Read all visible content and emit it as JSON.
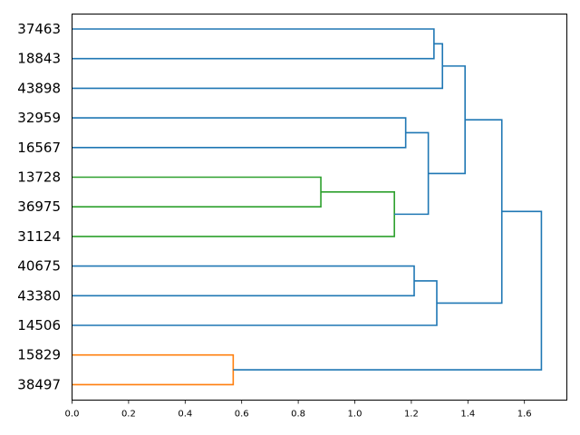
{
  "chart_data": {
    "type": "dendrogram",
    "orientation": "left",
    "xlim": [
      0,
      1.75
    ],
    "x_ticks": [
      0.0,
      0.2,
      0.4,
      0.6,
      0.8,
      1.0,
      1.2,
      1.4,
      1.6
    ],
    "x_tick_labels": [
      "0.0",
      "0.2",
      "0.4",
      "0.6",
      "0.8",
      "1.0",
      "1.2",
      "1.4",
      "1.6"
    ],
    "leaves": [
      "37463",
      "18843",
      "43898",
      "32959",
      "16567",
      "13728",
      "36975",
      "31124",
      "40675",
      "43380",
      "14506",
      "15829",
      "38497"
    ],
    "merges": [
      {
        "left": "leaf:0",
        "right": "leaf:1",
        "height": 1.28,
        "color": "#1f77b4"
      },
      {
        "left": "m:0",
        "right": "leaf:2",
        "height": 1.31,
        "color": "#1f77b4"
      },
      {
        "left": "leaf:3",
        "right": "leaf:4",
        "height": 1.18,
        "color": "#1f77b4"
      },
      {
        "left": "leaf:5",
        "right": "leaf:6",
        "height": 0.88,
        "color": "#2ca02c"
      },
      {
        "left": "m:3",
        "right": "leaf:7",
        "height": 1.14,
        "color": "#2ca02c"
      },
      {
        "left": "m:2",
        "right": "m:4",
        "height": 1.26,
        "color": "#1f77b4"
      },
      {
        "left": "m:1",
        "right": "m:5",
        "height": 1.39,
        "color": "#1f77b4"
      },
      {
        "left": "leaf:8",
        "right": "leaf:9",
        "height": 1.21,
        "color": "#1f77b4"
      },
      {
        "left": "m:7",
        "right": "leaf:10",
        "height": 1.29,
        "color": "#1f77b4"
      },
      {
        "left": "m:6",
        "right": "m:8",
        "height": 1.52,
        "color": "#1f77b4"
      },
      {
        "left": "leaf:11",
        "right": "leaf:12",
        "height": 0.57,
        "color": "#ff7f0e"
      },
      {
        "left": "m:9",
        "right": "m:10",
        "height": 1.66,
        "color": "#1f77b4"
      }
    ]
  }
}
